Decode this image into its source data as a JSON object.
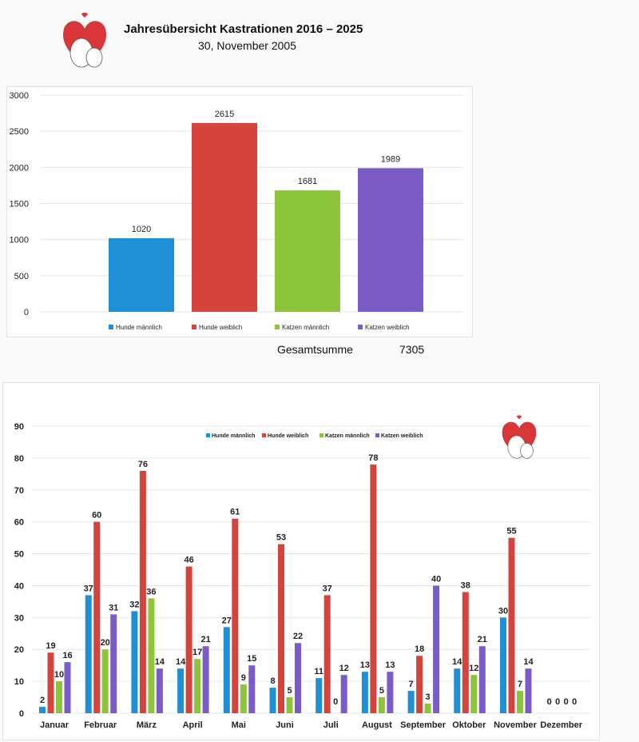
{
  "header": {
    "title": "Jahresübersicht Kastrationen 2016 – 2025",
    "date": "30, November 2005"
  },
  "summary": {
    "total_label": "Gesamtsumme",
    "total_value": "7305"
  },
  "colors": {
    "hunde_m": "#1f8fd6",
    "hunde_w": "#d5443c",
    "katzen_m": "#8cc43c",
    "katzen_w": "#7b5cc6"
  },
  "chart_data": [
    {
      "type": "bar",
      "title": "",
      "categories": [
        "Hunde männlich",
        "Hunde weiblich",
        "Katzen männlich",
        "Katzen weiblich"
      ],
      "values": [
        1020,
        2615,
        1681,
        1989
      ],
      "ylim": [
        0,
        3000
      ],
      "yticks": [
        0,
        500,
        1000,
        1500,
        2000,
        2500,
        3000
      ],
      "legend": "bottom",
      "grid": true
    },
    {
      "type": "bar",
      "title": "",
      "categories": [
        "Januar",
        "Februar",
        "März",
        "April",
        "Mai",
        "Juni",
        "Juli",
        "August",
        "September",
        "Oktober",
        "November",
        "Dezember"
      ],
      "series": [
        {
          "name": "Hunde männlich",
          "values": [
            2,
            37,
            32,
            14,
            27,
            8,
            11,
            13,
            7,
            14,
            30,
            0
          ]
        },
        {
          "name": "Hunde weiblich",
          "values": [
            19,
            60,
            76,
            46,
            61,
            53,
            37,
            78,
            18,
            38,
            55,
            0
          ]
        },
        {
          "name": "Katzen männlich",
          "values": [
            10,
            20,
            36,
            17,
            9,
            5,
            0,
            5,
            3,
            12,
            7,
            0
          ]
        },
        {
          "name": "Katzen weiblich",
          "values": [
            16,
            31,
            14,
            21,
            15,
            22,
            12,
            13,
            40,
            21,
            14,
            0
          ]
        }
      ],
      "ylim": [
        0,
        90
      ],
      "yticks": [
        0,
        10,
        20,
        30,
        40,
        50,
        60,
        70,
        80,
        90
      ],
      "legend": "top",
      "grid": true
    }
  ]
}
